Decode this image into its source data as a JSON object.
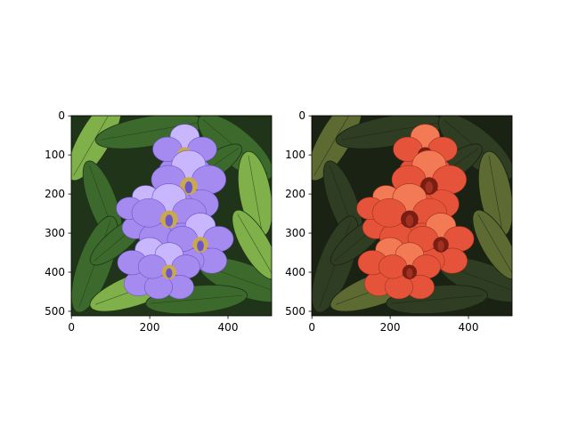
{
  "figure": {
    "background": "#ffffff",
    "panels": [
      {
        "name": "left-panel",
        "scene": "purple flowers with green leaves",
        "xticks": [
          "0",
          "200",
          "400"
        ],
        "yticks": [
          "0",
          "100",
          "200",
          "300",
          "400",
          "500"
        ],
        "colors": {
          "leaf_dark": "#1f3418",
          "leaf": "#3c6a2c",
          "leaf_light": "#7fb04a",
          "petal": "#a58af0",
          "petal_light": "#c8b6ff",
          "petal_dark": "#6b55c8",
          "center": "#caa94b"
        }
      },
      {
        "name": "right-panel",
        "scene": "red-orange flowers with dark green leaves (color-transferred)",
        "xticks": [
          "0",
          "200",
          "400"
        ],
        "yticks": [
          "0",
          "100",
          "200",
          "300",
          "400",
          "500"
        ],
        "colors": {
          "leaf_dark": "#1a2213",
          "leaf": "#2f3d22",
          "leaf_light": "#5d6a32",
          "petal": "#e5543a",
          "petal_light": "#f27a54",
          "petal_dark": "#a0301f",
          "center": "#7a1d13"
        }
      }
    ]
  }
}
